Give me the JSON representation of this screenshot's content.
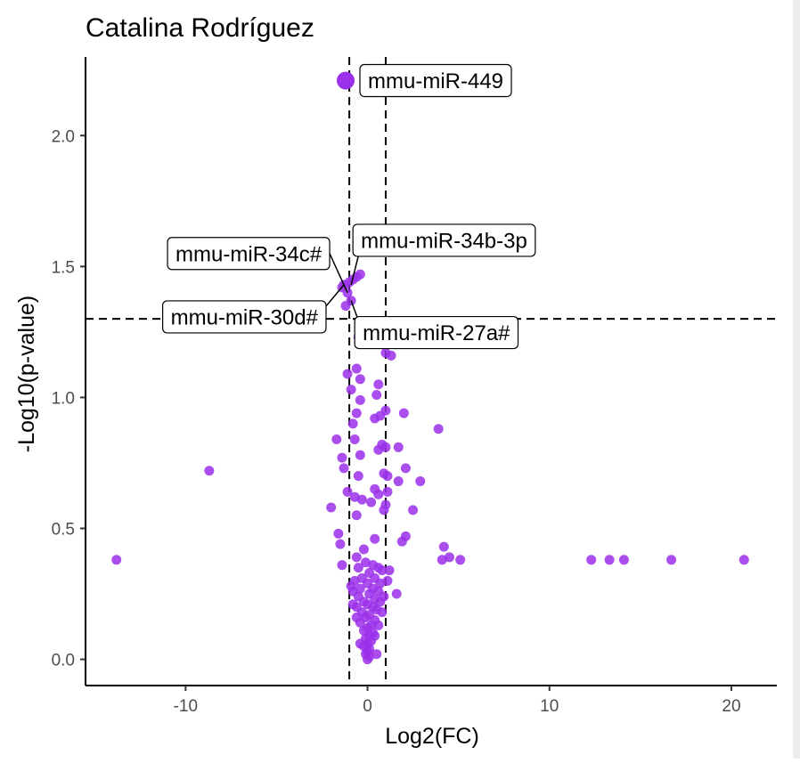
{
  "chart_data": {
    "type": "scatter",
    "title": "Catalina Rodríguez",
    "xlabel": "Log2(FC)",
    "ylabel": "-Log10(p-value)",
    "xlim": [
      -15.5,
      22.5
    ],
    "ylim": [
      -0.1,
      2.3
    ],
    "x_ticks": [
      -10,
      0,
      10,
      20
    ],
    "y_ticks": [
      0.0,
      0.5,
      1.0,
      1.5,
      2.0
    ],
    "x_tick_labels": [
      "-10",
      "0",
      "10",
      "20"
    ],
    "y_tick_labels": [
      "0.0",
      "0.5",
      "1.0",
      "1.5",
      "2.0"
    ],
    "thresholds": {
      "vlines": [
        -1,
        1
      ],
      "hline": 1.3
    },
    "grid": false,
    "point_color": "#9b30ea",
    "points": [
      [
        -1.2,
        2.21
      ],
      [
        -1.3,
        1.43
      ],
      [
        -1.1,
        1.4
      ],
      [
        -0.8,
        1.45
      ],
      [
        -0.6,
        1.46
      ],
      [
        -0.4,
        1.47
      ],
      [
        -1.4,
        1.42
      ],
      [
        -1.0,
        1.44
      ],
      [
        -0.9,
        1.37
      ],
      [
        -1.2,
        1.35
      ],
      [
        1.0,
        1.17
      ],
      [
        1.3,
        1.16
      ],
      [
        -0.5,
        1.23
      ],
      [
        -0.6,
        1.11
      ],
      [
        -1.1,
        1.09
      ],
      [
        -0.4,
        1.07
      ],
      [
        0.6,
        1.05
      ],
      [
        0.5,
        1.01
      ],
      [
        -0.9,
        1.03
      ],
      [
        -0.4,
        0.99
      ],
      [
        -0.6,
        0.94
      ],
      [
        1.0,
        0.95
      ],
      [
        0.7,
        0.93
      ],
      [
        2.0,
        0.94
      ],
      [
        -0.8,
        0.9
      ],
      [
        0.4,
        0.92
      ],
      [
        3.9,
        0.88
      ],
      [
        -1.7,
        0.84
      ],
      [
        -0.7,
        0.84
      ],
      [
        0.8,
        0.82
      ],
      [
        1.0,
        0.81
      ],
      [
        1.7,
        0.81
      ],
      [
        -1.4,
        0.77
      ],
      [
        0.6,
        0.8
      ],
      [
        -0.4,
        0.78
      ],
      [
        -8.7,
        0.72
      ],
      [
        -1.3,
        0.73
      ],
      [
        2.1,
        0.73
      ],
      [
        0.9,
        0.71
      ],
      [
        1.1,
        0.7
      ],
      [
        1.7,
        0.68
      ],
      [
        2.9,
        0.68
      ],
      [
        -0.5,
        0.7
      ],
      [
        -1.1,
        0.64
      ],
      [
        -0.7,
        0.62
      ],
      [
        0.6,
        0.63
      ],
      [
        1.1,
        0.64
      ],
      [
        0.4,
        0.65
      ],
      [
        -0.3,
        0.61
      ],
      [
        0.2,
        0.6
      ],
      [
        -2.0,
        0.58
      ],
      [
        1.0,
        0.59
      ],
      [
        0.9,
        0.57
      ],
      [
        2.5,
        0.57
      ],
      [
        -0.6,
        0.55
      ],
      [
        2.1,
        0.47
      ],
      [
        -1.6,
        0.48
      ],
      [
        -1.5,
        0.44
      ],
      [
        1.9,
        0.45
      ],
      [
        0.4,
        0.46
      ],
      [
        -0.2,
        0.42
      ],
      [
        4.2,
        0.43
      ],
      [
        4.5,
        0.39
      ],
      [
        5.1,
        0.38
      ],
      [
        4.1,
        0.38
      ],
      [
        -13.8,
        0.38
      ],
      [
        12.3,
        0.38
      ],
      [
        13.3,
        0.38
      ],
      [
        14.1,
        0.38
      ],
      [
        16.7,
        0.38
      ],
      [
        20.7,
        0.38
      ],
      [
        -1.4,
        0.36
      ],
      [
        -0.6,
        0.39
      ],
      [
        -0.5,
        0.35
      ],
      [
        0.3,
        0.36
      ],
      [
        0.6,
        0.35
      ],
      [
        0.8,
        0.34
      ],
      [
        1.2,
        0.34
      ],
      [
        -0.1,
        0.37
      ],
      [
        0.1,
        0.33
      ],
      [
        -0.3,
        0.31
      ],
      [
        0.4,
        0.31
      ],
      [
        -0.7,
        0.3
      ],
      [
        0.7,
        0.29
      ],
      [
        1.1,
        0.3
      ],
      [
        0.0,
        0.29
      ],
      [
        -0.4,
        0.27
      ],
      [
        0.3,
        0.27
      ],
      [
        0.6,
        0.26
      ],
      [
        -0.8,
        0.26
      ],
      [
        1.6,
        0.25
      ],
      [
        0.1,
        0.25
      ],
      [
        -0.5,
        0.24
      ],
      [
        0.4,
        0.23
      ],
      [
        -0.2,
        0.22
      ],
      [
        0.7,
        0.22
      ],
      [
        0.0,
        0.21
      ],
      [
        -0.6,
        0.2
      ],
      [
        0.3,
        0.2
      ],
      [
        0.5,
        0.19
      ],
      [
        -0.3,
        0.18
      ],
      [
        0.1,
        0.17
      ],
      [
        -0.1,
        0.16
      ],
      [
        0.4,
        0.15
      ],
      [
        -0.4,
        0.14
      ],
      [
        0.2,
        0.13
      ],
      [
        0.0,
        0.12
      ],
      [
        -0.2,
        0.11
      ],
      [
        0.3,
        0.1
      ],
      [
        0.1,
        0.09
      ],
      [
        -0.1,
        0.08
      ],
      [
        0.2,
        0.07
      ],
      [
        0.0,
        0.06
      ],
      [
        -0.2,
        0.05
      ],
      [
        0.1,
        0.04
      ],
      [
        0.0,
        0.03
      ],
      [
        -0.1,
        0.02
      ],
      [
        0.1,
        0.01
      ],
      [
        0.0,
        0.0
      ],
      [
        0.5,
        0.02
      ],
      [
        -0.4,
        0.06
      ],
      [
        0.4,
        0.09
      ],
      [
        0.6,
        0.13
      ],
      [
        -0.6,
        0.16
      ],
      [
        0.8,
        0.18
      ],
      [
        -0.8,
        0.21
      ],
      [
        0.9,
        0.24
      ],
      [
        -0.9,
        0.28
      ]
    ],
    "big_point": [
      -1.2,
      2.21
    ],
    "annotations": [
      {
        "label": "mmu-miR-449",
        "x": -1.2,
        "y": 2.21,
        "anchor": "right"
      },
      {
        "label": "mmu-miR-34c#",
        "x": -1.1,
        "y": 1.4,
        "anchor": "upper-left"
      },
      {
        "label": "mmu-miR-34b-3p",
        "x": -0.9,
        "y": 1.43,
        "anchor": "upper-right"
      },
      {
        "label": "mmu-miR-30d#",
        "x": -1.3,
        "y": 1.43,
        "anchor": "lower-left"
      },
      {
        "label": "mmu-miR-27a#",
        "x": -0.9,
        "y": 1.37,
        "anchor": "lower-right"
      }
    ]
  }
}
